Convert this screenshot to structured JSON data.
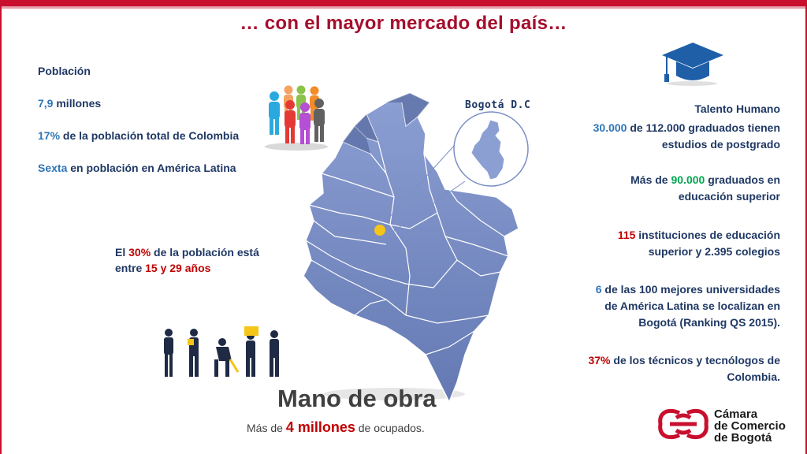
{
  "title": "… con el mayor mercado del país…",
  "poblacion": {
    "heading": "Población",
    "line1_value": "7,9",
    "line1_text": " millones",
    "line2_value": "17%",
    "line2_text": " de la población total de Colombia",
    "line3_value": "Sexta",
    "line3_text": " en población en América Latina"
  },
  "edad": {
    "pre": "El ",
    "percent": "30%",
    "mid": " de la población está",
    "pre2": "entre ",
    "range": "15 y 29 años"
  },
  "map": {
    "bogota_label": "Bogotá D.C"
  },
  "talento": {
    "heading": "Talento Humano",
    "b1_value": "30.000",
    "b1_text_a": " de 112.000 graduados tienen",
    "b1_text_b": "estudios de postgrado",
    "b2_pre": "Más de ",
    "b2_value": "90.000",
    "b2_text_a": " graduados  en",
    "b2_text_b": "educación superior",
    "b3_value": "115",
    "b3_text_a": " instituciones de educación",
    "b3_text_b": "superior y 2.395 colegios",
    "b4_value": "6",
    "b4_text_a": " de las 100 mejores universidades",
    "b4_text_b": "de América Latina se localizan en",
    "b4_text_c": "Bogotá (Ranking QS 2015).",
    "b5_value": "37%",
    "b5_text_a": " de los técnicos y tecnólogos de",
    "b5_text_b": "Colombia."
  },
  "mano": {
    "title": "Mano de obra",
    "sub_pre": "Más de ",
    "sub_value": "4 millones",
    "sub_post": " de ocupados."
  },
  "logo": {
    "line1": "Cámara",
    "line2": "de Comercio",
    "line3": "de Bogotá"
  },
  "colors": {
    "brand_red": "#c8102e",
    "map_fill": "#7b8fc4",
    "text_navy": "#1f3864",
    "value_blue": "#2e75b6",
    "accent_red": "#c00000",
    "accent_green": "#00a651"
  }
}
